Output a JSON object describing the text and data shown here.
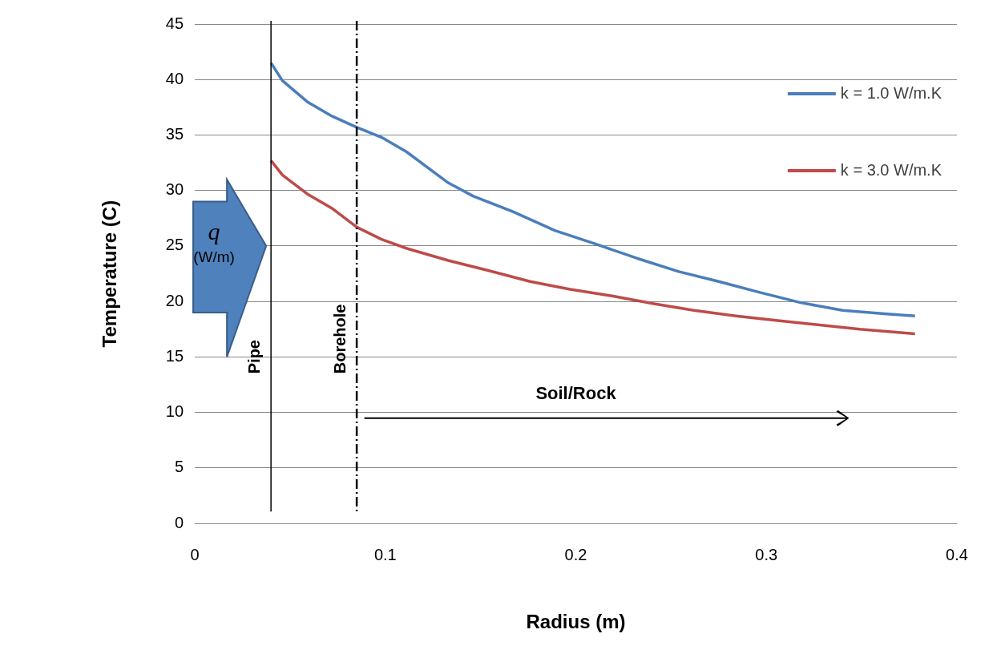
{
  "chart_data": {
    "type": "line",
    "xlabel": "Radius (m)",
    "ylabel": "Temperature (C)",
    "xlim": [
      0,
      0.4
    ],
    "xticks": [
      0,
      0.1,
      0.2,
      0.3,
      0.4
    ],
    "ylim": [
      0,
      45
    ],
    "yticks": [
      0,
      5,
      10,
      15,
      20,
      25,
      30,
      35,
      40,
      45
    ],
    "grid": "y",
    "legend": "top right",
    "marker": "none",
    "line_style": "solid",
    "series": [
      {
        "name": "k = 1.0 W/m.K",
        "color": "#4a7ebb",
        "x": [
          0.04,
          0.046,
          0.059,
          0.072,
          0.085,
          0.098,
          0.111,
          0.133,
          0.146,
          0.167,
          0.189,
          0.21,
          0.232,
          0.254,
          0.275,
          0.297,
          0.318,
          0.34,
          0.362,
          0.378
        ],
        "values": [
          41.5,
          39.9,
          38.0,
          36.7,
          35.7,
          34.8,
          33.5,
          30.7,
          29.5,
          28.1,
          26.4,
          25.2,
          23.9,
          22.7,
          21.8,
          20.8,
          19.9,
          19.2,
          18.9,
          18.7
        ]
      },
      {
        "name": "k = 3.0 W/m.K",
        "color": "#be4b48",
        "x": [
          0.04,
          0.046,
          0.059,
          0.072,
          0.085,
          0.098,
          0.111,
          0.133,
          0.154,
          0.176,
          0.197,
          0.219,
          0.241,
          0.262,
          0.284,
          0.305,
          0.327,
          0.349,
          0.378
        ],
        "values": [
          32.7,
          31.4,
          29.7,
          28.4,
          26.7,
          25.6,
          24.8,
          23.7,
          22.8,
          21.8,
          21.1,
          20.5,
          19.8,
          19.2,
          18.7,
          18.3,
          17.9,
          17.5,
          17.1
        ]
      }
    ],
    "ref_lines": [
      {
        "axis": "x",
        "value": 0.04,
        "label": "Pipe",
        "color": "#000000",
        "line_style": "solid"
      },
      {
        "axis": "x",
        "value": 0.085,
        "label": "Borehole",
        "color": "#000000",
        "line_style": "dashdot"
      }
    ],
    "annotations": [
      "q",
      "(W/m)",
      "Soil/Rock"
    ]
  }
}
